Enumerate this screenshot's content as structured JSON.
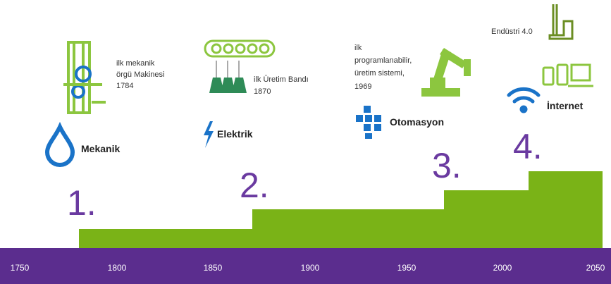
{
  "timeline": {
    "ticks": [
      "1750",
      "1800",
      "1850",
      "1900",
      "1950",
      "2000",
      "2050"
    ]
  },
  "stages": [
    {
      "number": "1.",
      "name": "Mekanik",
      "caption": [
        "ilk mekanik",
        "örgü Makinesi",
        "1784"
      ]
    },
    {
      "number": "2.",
      "name": "Elektrik",
      "caption": [
        "ilk Üretim Bandı",
        "1870"
      ]
    },
    {
      "number": "3.",
      "name": "Otomasyon",
      "caption": [
        "ilk",
        "programlanabilir,",
        "üretim sistemi,",
        "1969"
      ]
    },
    {
      "number": "4.",
      "name": "İnternet",
      "caption": [
        "Endüstri 4.0"
      ]
    }
  ]
}
